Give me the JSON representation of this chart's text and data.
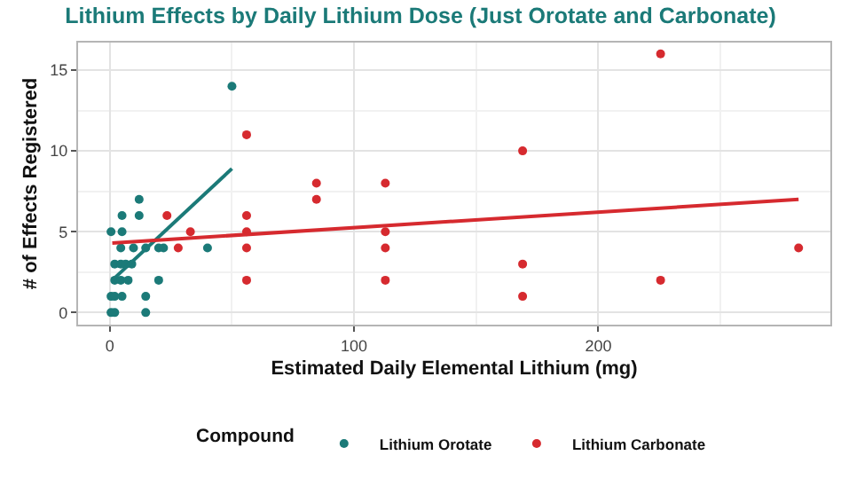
{
  "chart_data": {
    "type": "scatter",
    "title": "Lithium Effects by Daily Lithium Dose (Just Orotate and Carbonate)",
    "xlabel": "Estimated Daily Elemental Lithium (mg)",
    "ylabel": "# of Effects Registered",
    "legend_title": "Compound",
    "legend": "bottom",
    "grid": true,
    "marker": "circle",
    "xlim": [
      -13,
      295
    ],
    "xticks": [
      0,
      100,
      200
    ],
    "ylim": [
      -0.75,
      16.7
    ],
    "yticks": [
      0,
      5,
      10,
      15
    ],
    "series": [
      {
        "name": "Lithium Orotate",
        "color": "#1b7a78",
        "x": [
          0.5,
          5,
          5,
          4.5,
          9.7,
          12,
          12,
          14.7,
          20,
          22,
          2,
          4.5,
          6.5,
          9,
          2,
          4.5,
          7.5,
          0.5,
          2,
          5,
          0.5,
          2,
          14.7,
          14.7,
          20,
          40,
          50
        ],
        "values": [
          5,
          6,
          5,
          4,
          4,
          7,
          6,
          4,
          4,
          4,
          3,
          3,
          3,
          3,
          2,
          2,
          2,
          1,
          1,
          1,
          0,
          0,
          0,
          1,
          2,
          4,
          14
        ]
      },
      {
        "name": "Lithium Carbonate",
        "color": "#d62a2f",
        "x": [
          23.4,
          28,
          33,
          56,
          56,
          56,
          56,
          56,
          84.6,
          84.6,
          112.8,
          112.8,
          112.8,
          112.8,
          169,
          169,
          169,
          225.5,
          225.5,
          282
        ],
        "values": [
          6,
          4,
          5,
          11,
          6,
          5,
          4,
          2,
          8,
          7,
          8,
          5,
          4,
          2,
          10,
          3,
          1,
          16,
          2,
          4
        ]
      },
      {
        "type": "line",
        "marker": "none",
        "color": "#1b7a78",
        "x": [
          1,
          50
        ],
        "values": [
          2,
          8.9
        ]
      },
      {
        "type": "line",
        "marker": "none",
        "color": "#d62a2f",
        "x": [
          1,
          282
        ],
        "values": [
          4.3,
          7
        ]
      }
    ]
  }
}
